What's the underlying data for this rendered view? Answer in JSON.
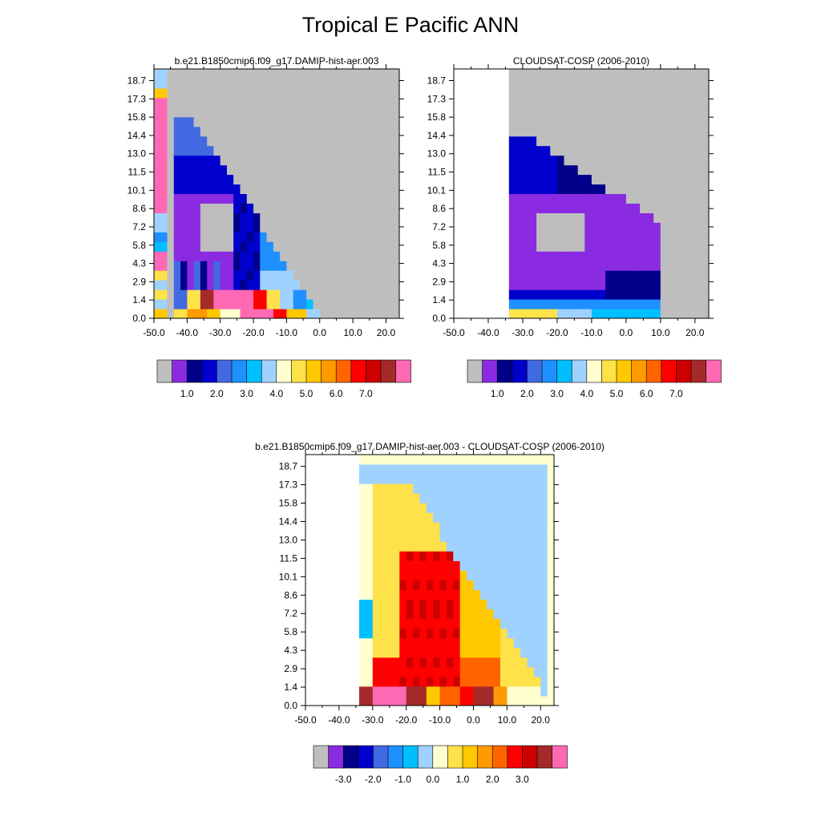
{
  "figure": {
    "title": "Tropical E Pacific ANN"
  },
  "colors": {
    "palette": [
      "#bebebe",
      "#8a2be2",
      "#00008b",
      "#0000cd",
      "#4169e1",
      "#1e90ff",
      "#00bfff",
      "#a0d2ff",
      "#ffffd0",
      "#ffe14a",
      "#ffc800",
      "#ff9a00",
      "#ff6400",
      "#ff0000",
      "#cd0000",
      "#a52a2a",
      "#ff69b4"
    ]
  },
  "chart_data": [
    {
      "type": "heatmap",
      "title": "b.e21.B1850cmip6.f09_g17.DAMIP-hist-aer.003",
      "xlabel": "",
      "ylabel": "",
      "x_tick_labels": [
        "-50.0",
        "-40.0",
        "-30.0",
        "-20.0",
        "-10.0",
        "0.0",
        "10.0",
        "20.0"
      ],
      "y_tick_labels": [
        "0.0",
        "1.4",
        "2.9",
        "4.3",
        "5.8",
        "7.2",
        "8.6",
        "10.1",
        "11.5",
        "13.0",
        "14.4",
        "15.8",
        "17.3",
        "18.7"
      ],
      "xlim": [
        -50,
        24
      ],
      "ylim": [
        0,
        19.5
      ],
      "colorbar_labels": [
        "1.0",
        "2.0",
        "3.0",
        "4.0",
        "5.0",
        "6.0",
        "7.0"
      ]
    },
    {
      "type": "heatmap",
      "title": "CLOUDSAT-COSP (2006-2010)",
      "xlabel": "",
      "ylabel": "",
      "x_tick_labels": [
        "-50.0",
        "-40.0",
        "-30.0",
        "-20.0",
        "-10.0",
        "0.0",
        "10.0",
        "20.0"
      ],
      "y_tick_labels": [
        "0.0",
        "1.4",
        "2.9",
        "4.3",
        "5.8",
        "7.2",
        "8.6",
        "10.1",
        "11.5",
        "13.0",
        "14.4",
        "15.8",
        "17.3",
        "18.7"
      ],
      "xlim": [
        -50,
        24
      ],
      "ylim": [
        0,
        19.5
      ],
      "colorbar_labels": [
        "1.0",
        "2.0",
        "3.0",
        "4.0",
        "5.0",
        "6.0",
        "7.0"
      ]
    },
    {
      "type": "heatmap",
      "title": "b.e21.B1850cmip6.f09_g17.DAMIP-hist-aer.003 - CLOUDSAT-COSP (2006-2010)",
      "xlabel": "",
      "ylabel": "",
      "x_tick_labels": [
        "-50.0",
        "-40.0",
        "-30.0",
        "-20.0",
        "-10.0",
        "0.0",
        "10.0",
        "20.0"
      ],
      "y_tick_labels": [
        "0.0",
        "1.4",
        "2.9",
        "4.3",
        "5.8",
        "7.2",
        "8.6",
        "10.1",
        "11.5",
        "13.0",
        "14.4",
        "15.8",
        "17.3",
        "18.7"
      ],
      "xlim": [
        -50,
        24
      ],
      "ylim": [
        0,
        19.5
      ],
      "colorbar_labels": [
        "-3.0",
        "-2.0",
        "-1.0",
        "0.0",
        "1.0",
        "2.0",
        "3.0"
      ]
    }
  ]
}
